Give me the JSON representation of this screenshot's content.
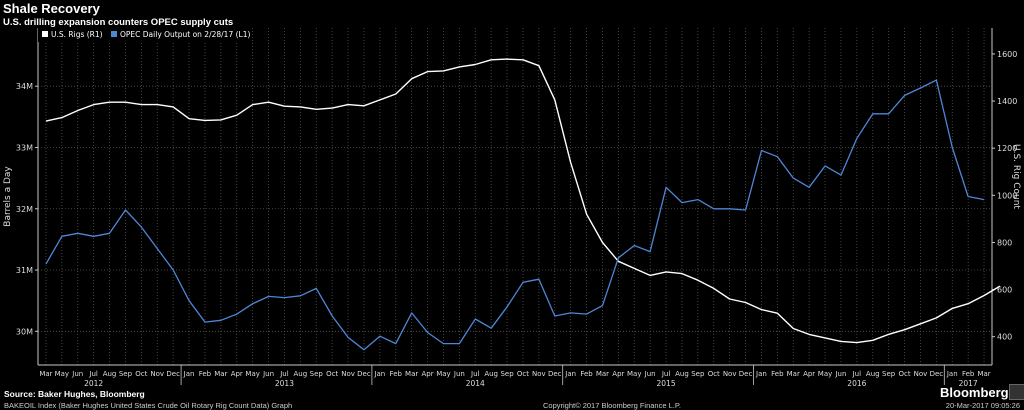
{
  "header": {
    "title": "Shale Recovery",
    "subtitle": "U.S. drilling expansion counters OPEC supply cuts"
  },
  "footer": {
    "source": "Source: Baker Hughes, Bloomberg",
    "index": "BAKEOIL Index (Baker Hughes United States Crude Oil Rotary Rig Count Data) Graph",
    "copyright": "Copyright© 2017 Bloomberg Finance L.P.",
    "timestamp": "20-Mar-2017 09:05:26",
    "brand": "Bloomberg"
  },
  "colors": {
    "rigs": "#ffffff",
    "opec": "#4f86d6",
    "axis": "#c8c8c8",
    "grid": "#555555"
  },
  "chart_data": {
    "type": "line",
    "legend_position": "top-left",
    "grid": true,
    "x_tick_labels": [
      "Mar",
      "May",
      "Jun",
      "Jul",
      "Aug",
      "Sep",
      "Oct",
      "Nov",
      "Dec",
      "Jan",
      "Feb",
      "Mar",
      "Apr",
      "May",
      "Jun",
      "Jul",
      "Aug",
      "Sep",
      "Oct",
      "Nov",
      "Dec",
      "Jan",
      "Feb",
      "Mar",
      "Apr",
      "May",
      "Jun",
      "Jul",
      "Aug",
      "Sep",
      "Oct",
      "Nov",
      "Dec",
      "Jan",
      "Feb",
      "Mar",
      "Apr",
      "May",
      "Jun",
      "Jul",
      "Aug",
      "Sep",
      "Oct",
      "Nov",
      "Dec",
      "Jan",
      "Feb",
      "Mar",
      "Apr",
      "May",
      "Jun",
      "Jul",
      "Aug",
      "Sep",
      "Oct",
      "Nov",
      "Dec",
      "Jan",
      "Feb",
      "Mar"
    ],
    "year_labels": [
      "2012",
      "2013",
      "2014",
      "2015",
      "2016",
      "2017"
    ],
    "left_axis": {
      "label": "Barrels a Day",
      "ticks": [
        "30M",
        "31M",
        "32M",
        "33M",
        "34M"
      ],
      "tick_values": [
        30,
        31,
        32,
        33,
        34
      ],
      "range": [
        29.45,
        34.95
      ]
    },
    "right_axis": {
      "label": "U.S. Rig Count",
      "ticks": [
        "400",
        "600",
        "800",
        "1000",
        "1200",
        "1400",
        "1600"
      ],
      "tick_values": [
        400,
        600,
        800,
        1000,
        1200,
        1400,
        1600
      ],
      "range": [
        280,
        1710
      ]
    },
    "series": [
      {
        "name": "U.S. Rigs",
        "legend": "U.S. Rigs  (R1)",
        "axis": "right",
        "x": [
          0,
          1,
          2,
          3,
          4,
          5,
          6,
          7,
          8,
          9,
          10,
          11,
          12,
          13,
          14,
          15,
          16,
          17,
          18,
          19,
          20,
          21,
          22,
          23,
          24,
          25,
          26,
          27,
          28,
          29,
          30,
          31,
          32,
          33,
          34,
          35,
          36,
          37,
          38,
          39,
          40,
          41,
          42,
          43,
          44,
          45,
          46,
          47,
          48,
          49,
          50,
          51,
          52,
          53,
          54,
          55,
          56,
          57,
          58,
          59,
          60
        ],
        "y": [
          1315,
          1330,
          1360,
          1385,
          1395,
          1395,
          1385,
          1385,
          1375,
          1325,
          1318,
          1320,
          1340,
          1385,
          1395,
          1378,
          1375,
          1365,
          1370,
          1385,
          1380,
          1405,
          1430,
          1495,
          1525,
          1528,
          1545,
          1555,
          1575,
          1578,
          1575,
          1550,
          1405,
          1140,
          920,
          800,
          720,
          690,
          660,
          675,
          668,
          640,
          605,
          560,
          545,
          515,
          500,
          435,
          410,
          395,
          380,
          375,
          385,
          410,
          430,
          455,
          480,
          520,
          540,
          575,
          615
        ]
      },
      {
        "name": "OPEC Daily Output",
        "legend": "OPEC Daily Output  on 2/28/17  (L1)",
        "axis": "left",
        "x": [
          0,
          1,
          2,
          3,
          4,
          5,
          6,
          7,
          8,
          9,
          10,
          11,
          12,
          13,
          14,
          15,
          16,
          17,
          18,
          19,
          20,
          21,
          22,
          23,
          24,
          25,
          26,
          27,
          28,
          29,
          30,
          31,
          32,
          33,
          34,
          35,
          36,
          37,
          38,
          39,
          40,
          41,
          42,
          43,
          44,
          45,
          46,
          47,
          48,
          49,
          50,
          51,
          52,
          53,
          54,
          55,
          56,
          57,
          58,
          59,
          60
        ],
        "y": [
          31.1,
          31.55,
          31.6,
          31.55,
          31.6,
          31.98,
          31.7,
          31.35,
          31.0,
          30.5,
          30.15,
          30.18,
          30.28,
          30.45,
          30.57,
          30.55,
          30.58,
          30.7,
          30.25,
          29.9,
          29.7,
          29.92,
          29.8,
          30.3,
          29.98,
          29.8,
          29.8,
          30.2,
          30.05,
          30.4,
          30.8,
          30.85,
          30.25,
          30.3,
          30.28,
          30.42,
          31.2,
          31.4,
          31.3,
          32.35,
          32.1,
          32.15,
          32.0,
          32.0,
          31.98,
          32.95,
          32.85,
          32.5,
          32.35,
          32.7,
          32.55,
          33.15,
          33.55,
          33.55,
          33.85,
          33.97,
          34.1,
          33.0,
          32.2,
          32.15,
          null
        ]
      }
    ]
  }
}
